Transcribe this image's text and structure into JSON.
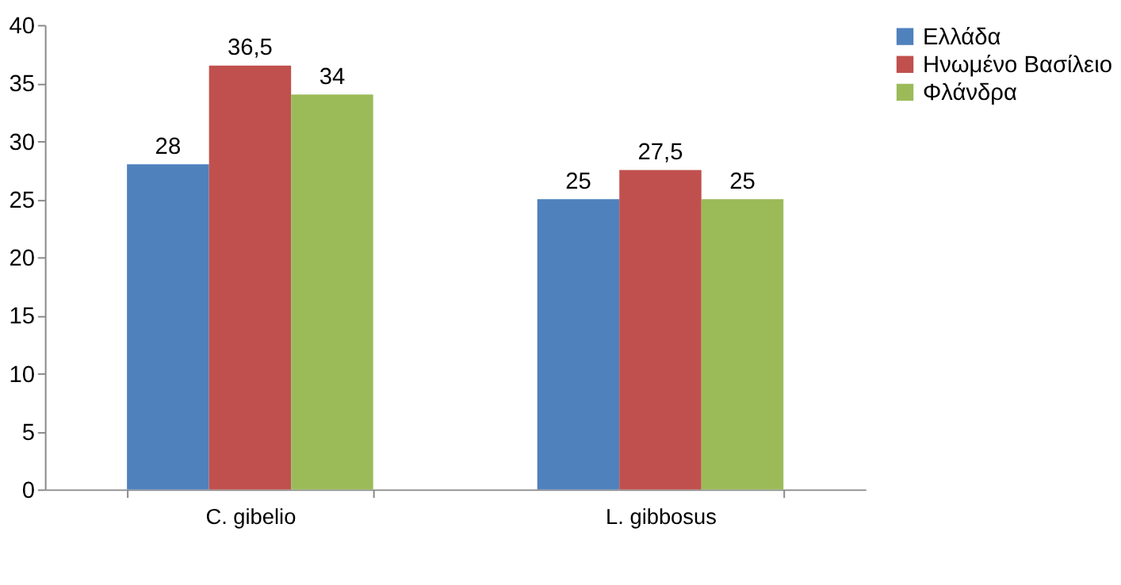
{
  "chart_data": {
    "type": "bar",
    "categories": [
      "C. gibelio",
      "L. gibbosus"
    ],
    "series": [
      {
        "name": "Ελλάδα",
        "color": "#4f81bd",
        "values": [
          28,
          25
        ],
        "value_labels": [
          "28",
          "25"
        ]
      },
      {
        "name": "Ηνωμένο Βασίλειο",
        "color": "#c0504d",
        "values": [
          36.5,
          27.5
        ],
        "value_labels": [
          "36,5",
          "27,5"
        ]
      },
      {
        "name": "Φλάνδρα",
        "color": "#9bbb59",
        "values": [
          34,
          25
        ],
        "value_labels": [
          "34",
          "25"
        ]
      }
    ],
    "ylim": [
      0,
      40
    ],
    "yticks": [
      0,
      5,
      10,
      15,
      20,
      25,
      30,
      35,
      40
    ],
    "grid": false,
    "legend": "right"
  }
}
